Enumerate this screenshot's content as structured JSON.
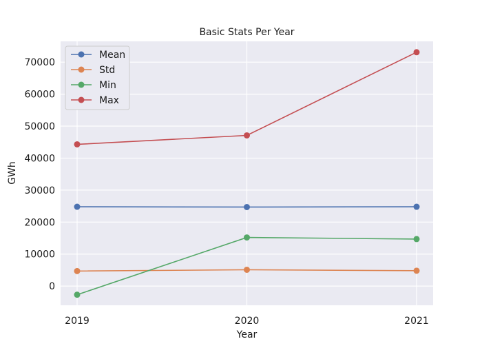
{
  "chart_data": {
    "type": "line",
    "title": "Basic Stats Per Year",
    "xlabel": "Year",
    "ylabel": "GWh",
    "x": [
      "2019",
      "2020",
      "2021"
    ],
    "ylim": [
      -6000,
      76500
    ],
    "yticks": [
      0,
      10000,
      20000,
      30000,
      40000,
      50000,
      60000,
      70000
    ],
    "ytick_labels": [
      "0",
      "10000",
      "20000",
      "30000",
      "40000",
      "50000",
      "60000",
      "70000"
    ],
    "grid": true,
    "legend_position": "top-left",
    "series": [
      {
        "name": "Mean",
        "color": "#4c72b0",
        "values": [
          24800,
          24700,
          24800
        ]
      },
      {
        "name": "Std",
        "color": "#dd8452",
        "values": [
          4700,
          5100,
          4800
        ]
      },
      {
        "name": "Min",
        "color": "#55a868",
        "values": [
          -2700,
          15200,
          14700
        ]
      },
      {
        "name": "Max",
        "color": "#c44e52",
        "values": [
          44300,
          47100,
          73100
        ]
      }
    ]
  }
}
